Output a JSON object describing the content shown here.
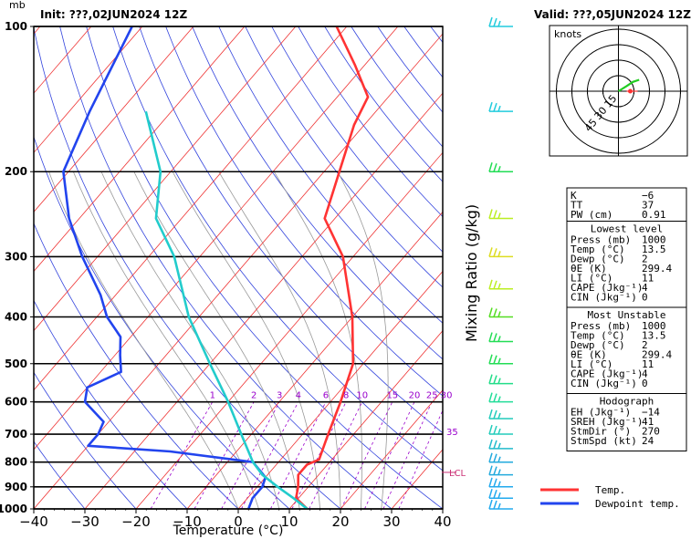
{
  "header": {
    "unit": "mb",
    "init": "Init: ???,02JUN2024 12Z",
    "valid": "Valid: ???,05JUN2024 12Z"
  },
  "chart_data": {
    "type": "line",
    "xlabel": "Temperature (°C)",
    "mixing_ratio_label": "Mixing Ratio (g/kg)",
    "xlim": [
      -40,
      40
    ],
    "ylim": [
      1000,
      100
    ],
    "y_log_scale": true,
    "x_ticks": [
      "−40",
      "−30",
      "−20",
      "−10",
      "0",
      "10",
      "20",
      "30",
      "40"
    ],
    "x_tick_values": [
      -40,
      -30,
      -20,
      -10,
      0,
      10,
      20,
      30,
      40
    ],
    "pressure_levels": [
      1000,
      900,
      800,
      700,
      600,
      500,
      400,
      300,
      200,
      100
    ],
    "pressure_labels": [
      "1000",
      "900",
      "800",
      "700",
      "600",
      "500",
      "400",
      "300",
      "200",
      "100"
    ],
    "mixing_ratio_values": [
      "1",
      "2",
      "3",
      "4",
      "6",
      "8",
      "10",
      "15",
      "20",
      "25",
      "30"
    ],
    "lcl_label": "LCL",
    "lcl_pressure": 840,
    "alt_label": "35",
    "series": [
      {
        "name": "Temp.",
        "color": "#ff3333",
        "points": [
          [
            1000,
            13.5
          ],
          [
            950,
            9.5
          ],
          [
            900,
            8
          ],
          [
            850,
            6
          ],
          [
            810,
            6
          ],
          [
            790,
            7.5
          ],
          [
            700,
            5
          ],
          [
            600,
            2
          ],
          [
            500,
            -2
          ],
          [
            400,
            -10
          ],
          [
            300,
            -22
          ],
          [
            250,
            -32
          ],
          [
            200,
            -37
          ],
          [
            160,
            -42
          ],
          [
            140,
            -44
          ],
          [
            120,
            -52
          ],
          [
            100,
            -62
          ]
        ]
      },
      {
        "name": "Dewpoint temp.",
        "color": "#2244ee",
        "points": [
          [
            1000,
            2
          ],
          [
            950,
            1
          ],
          [
            900,
            1
          ],
          [
            860,
            0
          ],
          [
            800,
            -5
          ],
          [
            760,
            -23
          ],
          [
            740,
            -40
          ],
          [
            700,
            -40
          ],
          [
            660,
            -41
          ],
          [
            600,
            -48
          ],
          [
            560,
            -50
          ],
          [
            520,
            -46
          ],
          [
            480,
            -49
          ],
          [
            440,
            -52
          ],
          [
            400,
            -58
          ],
          [
            360,
            -63
          ],
          [
            300,
            -73
          ],
          [
            250,
            -82
          ],
          [
            200,
            -91
          ],
          [
            150,
            -96
          ],
          [
            100,
            -102
          ]
        ]
      },
      {
        "name": "Parcel",
        "color": "#22cccc",
        "points": [
          [
            1000,
            13.5
          ],
          [
            950,
            9
          ],
          [
            900,
            4
          ],
          [
            850,
            -1
          ],
          [
            800,
            -5
          ],
          [
            700,
            -12
          ],
          [
            600,
            -20
          ],
          [
            500,
            -30
          ],
          [
            400,
            -42
          ],
          [
            300,
            -55
          ],
          [
            250,
            -65
          ],
          [
            200,
            -72
          ],
          [
            150,
            -85
          ]
        ]
      }
    ],
    "wind_profile": [
      {
        "p": 100,
        "color": "#22ccdd"
      },
      {
        "p": 150,
        "color": "#22ccdd"
      },
      {
        "p": 200,
        "color": "#22dd55"
      },
      {
        "p": 250,
        "color": "#bbee22"
      },
      {
        "p": 300,
        "color": "#dddd22"
      },
      {
        "p": 350,
        "color": "#bbee22"
      },
      {
        "p": 400,
        "color": "#55dd22"
      },
      {
        "p": 450,
        "color": "#22dd55"
      },
      {
        "p": 500,
        "color": "#22dd55"
      },
      {
        "p": 550,
        "color": "#22dd88"
      },
      {
        "p": 600,
        "color": "#22dd99"
      },
      {
        "p": 650,
        "color": "#22ccbb"
      },
      {
        "p": 700,
        "color": "#22ccbb"
      },
      {
        "p": 750,
        "color": "#22bbcc"
      },
      {
        "p": 800,
        "color": "#22aadd"
      },
      {
        "p": 850,
        "color": "#22aadd"
      },
      {
        "p": 900,
        "color": "#22aaee"
      },
      {
        "p": 950,
        "color": "#22aaee"
      },
      {
        "p": 1000,
        "color": "#22aaee"
      }
    ],
    "hodograph": {
      "label": "knots",
      "rings": [
        "15",
        "30",
        "45"
      ],
      "trace": [
        [
          0,
          0
        ],
        [
          8,
          5
        ],
        [
          14,
          9
        ],
        [
          20,
          11
        ]
      ]
    },
    "legend": {
      "position": "bottom-right",
      "items": [
        "Temp.",
        "Dewpoint temp."
      ]
    }
  },
  "indices": {
    "top": [
      [
        "K",
        "−6"
      ],
      [
        "TT",
        "37"
      ],
      [
        "PW (cm)",
        "0.91"
      ]
    ],
    "lowest_title": "Lowest level",
    "lowest": [
      [
        "Press (mb)",
        "1000"
      ],
      [
        "Temp (°C)",
        "13.5"
      ],
      [
        "Dewp (°C)",
        "2"
      ],
      [
        "θE (K)",
        "299.4"
      ],
      [
        "LI (°C)",
        "11"
      ],
      [
        "CAPE (Jkg⁻¹)",
        "4"
      ],
      [
        "CIN (Jkg⁻¹)",
        "0"
      ]
    ],
    "mu_title": "Most Unstable",
    "mu": [
      [
        "Press (mb)",
        "1000"
      ],
      [
        "Temp (°C)",
        "13.5"
      ],
      [
        "Dewp (°C)",
        "2"
      ],
      [
        "θE (K)",
        "299.4"
      ],
      [
        "LI (°C)",
        "11"
      ],
      [
        "CAPE (Jkg⁻¹)",
        "4"
      ],
      [
        "CIN (Jkg⁻¹)",
        "0"
      ]
    ],
    "hodo_title": "Hodograph",
    "hodo": [
      [
        "EH (Jkg⁻¹)",
        "−14"
      ],
      [
        "SREH (Jkg⁻¹)",
        "41"
      ]
    ],
    "storm": [
      [
        "StmDir (°)",
        "270"
      ],
      [
        "StmSpd (kt)",
        "24"
      ]
    ]
  },
  "colors": {
    "temp": "#ff3333",
    "dew": "#2244ee",
    "parcel": "#22cccc",
    "isotherm": "#ee3333",
    "adiabat": "#3344dd",
    "mixing": "#9900cc",
    "moist": "#999999"
  }
}
